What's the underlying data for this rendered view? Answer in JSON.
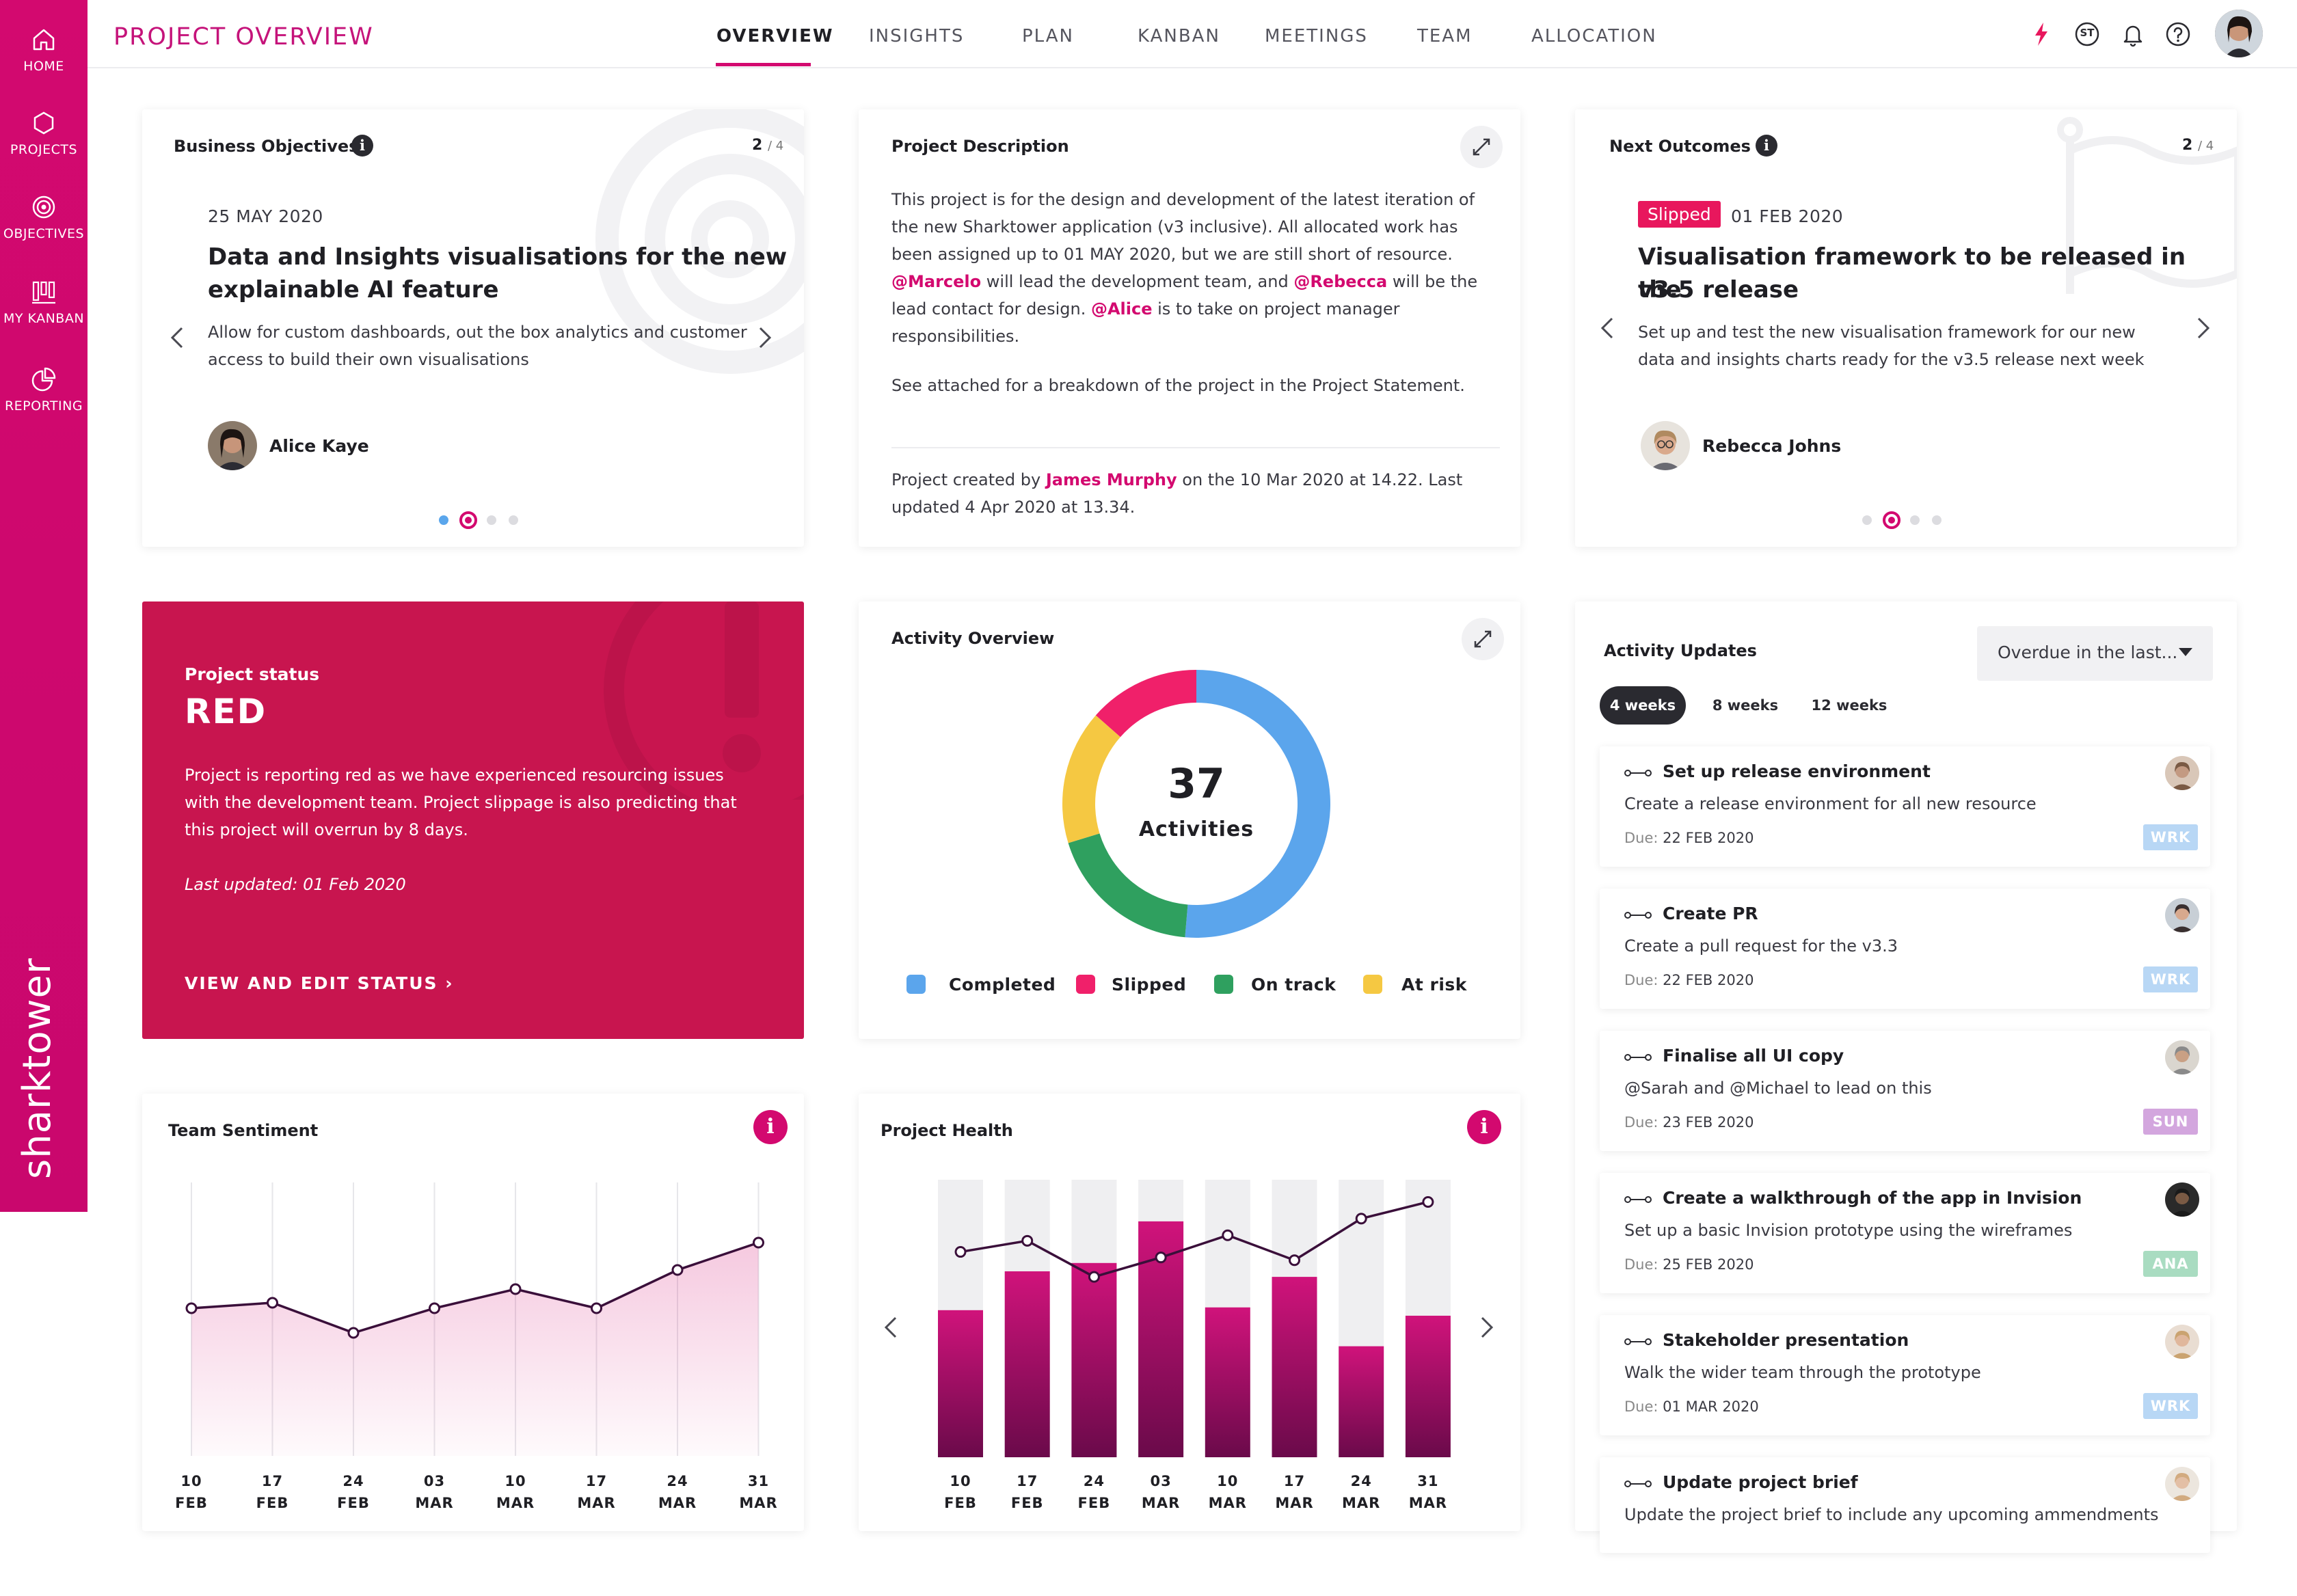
{
  "sidebar": {
    "items": [
      {
        "label": "HOME",
        "icon": "home-icon"
      },
      {
        "label": "PROJECTS",
        "icon": "hexagon-icon"
      },
      {
        "label": "OBJECTIVES",
        "icon": "target-icon"
      },
      {
        "label": "MY KANBAN",
        "icon": "kanban-icon"
      },
      {
        "label": "REPORTING",
        "icon": "pie-chart-icon"
      }
    ],
    "brand": "sharktower"
  },
  "header": {
    "title": "PROJECT OVERVIEW",
    "tabs": [
      {
        "label": "OVERVIEW",
        "active": true
      },
      {
        "label": "INSIGHTS",
        "active": false
      },
      {
        "label": "PLAN",
        "active": false
      },
      {
        "label": "KANBAN",
        "active": false
      },
      {
        "label": "MEETINGS",
        "active": false
      },
      {
        "label": "TEAM",
        "active": false
      },
      {
        "label": "ALLOCATION",
        "active": false
      }
    ],
    "user_initials": "ST",
    "icons": [
      "lightning-icon",
      "initials-badge-icon",
      "bell-icon",
      "help-icon",
      "user-avatar"
    ]
  },
  "business_objectives": {
    "title": "Business Objectives",
    "page_current": "2",
    "page_total": "/ 4",
    "date": "25 MAY 2020",
    "headline_line1": "Data and Insights visualisations for the new",
    "headline_line2": "explainable AI feature",
    "desc_line1": "Allow for custom dashboards, out the box analytics and customer",
    "desc_line2": "access to build their own visualisations",
    "owner": "Alice Kaye"
  },
  "project_description": {
    "title": "Project Description",
    "line1": "This project is for the design and development of the latest iteration of",
    "line2": "the new Sharktower application (v3 inclusive). All allocated work has",
    "line3": "been assigned up to 01 MAY 2020, but we are still short of resource.",
    "m1": "@Marcelo",
    "line4b": " will lead the development team, and ",
    "m2": "@Rebecca",
    "line4d": " will be the",
    "line5a": "lead contact for design. ",
    "m3": "@Alice",
    "line5c": " is to take on project manager",
    "line6": "responsibilities.",
    "line7": "See attached for a breakdown of the project in the Project Statement.",
    "footer_a": "Project created by ",
    "creator": "James Murphy",
    "footer_b": " on the 10 Mar 2020 at 14.22. Last",
    "footer_c": "updated 4 Apr 2020 at 13.34."
  },
  "next_outcomes": {
    "title": "Next Outcomes",
    "page_current": "2",
    "page_total": "/ 4",
    "badge": "Slipped",
    "date": "01 FEB 2020",
    "headline_line1": "Visualisation framework to be released in the",
    "headline_line2": "v3.5 release",
    "desc_line1": "Set up and test the new visualisation framework for our new",
    "desc_line2": "data and insights charts ready for the v3.5 release next week",
    "owner": "Rebecca Johns"
  },
  "project_status": {
    "label": "Project status",
    "value": "RED",
    "desc_line1": "Project is reporting red as we have experienced resourcing issues",
    "desc_line2": "with the development team. Project slippage is also predicting that",
    "desc_line3": "this project will overrun by 8 days.",
    "updated": "Last updated: 01 Feb 2020",
    "cta": "VIEW AND EDIT STATUS ›"
  },
  "activity_overview": {
    "title": "Activity Overview",
    "total": "37",
    "total_label": "Activities",
    "legend": [
      {
        "label": "Completed",
        "color": "#5ba5ec"
      },
      {
        "label": "Slipped",
        "color": "#f0206a"
      },
      {
        "label": "On track",
        "color": "#2fa05f"
      },
      {
        "label": "At risk",
        "color": "#f5c842"
      }
    ]
  },
  "activity_updates": {
    "title": "Activity Updates",
    "filter": "Overdue in the last...",
    "ranges": [
      "4 weeks",
      "8 weeks",
      "12 weeks"
    ],
    "due_label": "Due:",
    "items": [
      {
        "title": "Set up release environment",
        "desc": "Create a release environment for all new resource",
        "due": "22 FEB 2020",
        "tag": "WRK",
        "tag_color": "#b8d7f5"
      },
      {
        "title": "Create PR",
        "desc": "Create a pull request for the v3.3",
        "due": "22 FEB 2020",
        "tag": "WRK",
        "tag_color": "#b8d7f5"
      },
      {
        "title": "Finalise all UI copy",
        "desc": "@Sarah and @Michael to lead on this",
        "due": "23 FEB 2020",
        "tag": "SUN",
        "tag_color": "#d3a6de"
      },
      {
        "title": "Create a walkthrough of the app in Invision",
        "desc": "Set up a basic Invision prototype using the wireframes",
        "due": "25 FEB 2020",
        "tag": "ANA",
        "tag_color": "#a9dcc1"
      },
      {
        "title": "Stakeholder presentation",
        "desc": "Walk the wider team through the prototype",
        "due": "01 MAR 2020",
        "tag": "WRK",
        "tag_color": "#b8d7f5"
      },
      {
        "title": "Update project brief",
        "desc": "Update the project brief to include any upcoming ammendments",
        "due": "",
        "tag": "",
        "tag_color": ""
      }
    ]
  },
  "team_sentiment": {
    "title": "Team Sentiment"
  },
  "project_health": {
    "title": "Project Health"
  },
  "chart_data": [
    {
      "type": "pie",
      "title": "Activity Overview",
      "categories": [
        "Completed",
        "Slipped",
        "On track",
        "At risk"
      ],
      "values": [
        19,
        5,
        7,
        6
      ]
    },
    {
      "type": "area",
      "title": "Team Sentiment",
      "categories": [
        "10 FEB",
        "17 FEB",
        "24 FEB",
        "03 MAR",
        "10 MAR",
        "17 MAR",
        "24 MAR",
        "31 MAR"
      ],
      "values": [
        54,
        56,
        45,
        54,
        61,
        54,
        68,
        78
      ],
      "ylim": [
        0,
        100
      ]
    },
    {
      "type": "bar",
      "title": "Project Health",
      "categories": [
        "10 FEB",
        "17 FEB",
        "24 FEB",
        "03 MAR",
        "10 MAR",
        "17 MAR",
        "24 MAR",
        "31 MAR"
      ],
      "series": [
        {
          "values": [
            53,
            67,
            70,
            85,
            54,
            65,
            40,
            51
          ]
        },
        {
          "values": [
            74,
            78,
            65,
            72,
            80,
            71,
            86,
            92
          ]
        }
      ],
      "ylim": [
        0,
        100
      ]
    }
  ]
}
